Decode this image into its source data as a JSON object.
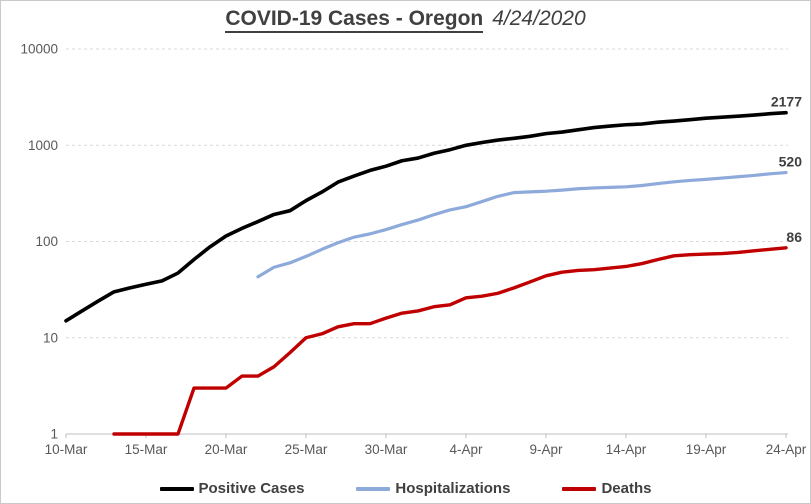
{
  "title": {
    "main": "COVID-19 Cases - Oregon",
    "date": "4/24/2020"
  },
  "colors": {
    "positive_cases": "#000000",
    "hospitalizations": "#8EAADB",
    "deaths": "#C00000",
    "title_text": "#404040",
    "axis_text": "#595959",
    "gridline": "#D9D9D9",
    "axis_line": "#BFBFBF",
    "background": "#FFFFFF"
  },
  "chart_data": {
    "type": "line",
    "title": "COVID-19 Cases - Oregon 4/24/2020",
    "y_scale": "log",
    "ylim": [
      1,
      10000
    ],
    "y_tick_labels": [
      "1",
      "10",
      "100",
      "1000",
      "10000"
    ],
    "x_tick_labels": [
      "10-Mar",
      "15-Mar",
      "20-Mar",
      "25-Mar",
      "30-Mar",
      "4-Apr",
      "9-Apr",
      "14-Apr",
      "19-Apr",
      "24-Apr"
    ],
    "x_tick_interval_days": 5,
    "x_range_days": 45,
    "grid": "horizontal-dashed",
    "legend_position": "bottom",
    "series": [
      {
        "name": "Positive Cases",
        "color": "#000000",
        "start_day": 0,
        "end_label": "2177",
        "values": [
          15,
          19,
          24,
          30,
          33,
          36,
          39,
          47,
          65,
          88,
          114,
          137,
          161,
          191,
          209,
          266,
          327,
          414,
          479,
          548,
          606,
          690,
          736,
          826,
          899,
          999,
          1068,
          1132,
          1181,
          1239,
          1321,
          1371,
          1447,
          1527,
          1584,
          1633,
          1663,
          1736,
          1785,
          1844,
          1910,
          1956,
          2002,
          2059,
          2127,
          2177
        ]
      },
      {
        "name": "Hospitalizations",
        "color": "#8EAADB",
        "start_day": 12,
        "end_label": "520",
        "values": [
          43,
          54,
          60,
          70,
          83,
          97,
          111,
          120,
          133,
          150,
          167,
          190,
          213,
          230,
          260,
          295,
          322,
          328,
          333,
          342,
          353,
          360,
          365,
          370,
          382,
          400,
          417,
          431,
          442,
          456,
          471,
          486,
          505,
          520
        ]
      },
      {
        "name": "Deaths",
        "color": "#C00000",
        "start_day": 3,
        "end_label": "86",
        "values": [
          1,
          1,
          1,
          1,
          1,
          3,
          3,
          3,
          4,
          4,
          5,
          7,
          10,
          11,
          13,
          14,
          14,
          16,
          18,
          19,
          21,
          22,
          26,
          27,
          29,
          33,
          38,
          44,
          48,
          50,
          51,
          53,
          55,
          59,
          65,
          71,
          73,
          74,
          75,
          77,
          80,
          83,
          86
        ]
      }
    ]
  }
}
